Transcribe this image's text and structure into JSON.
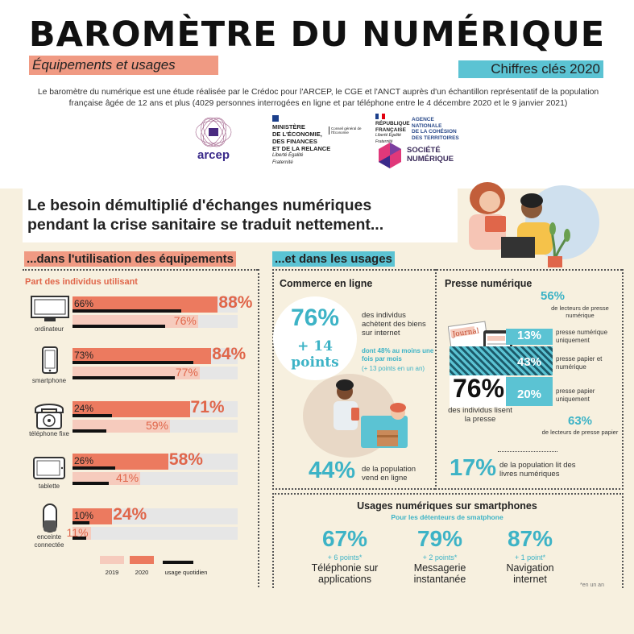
{
  "header": {
    "title": "BAROMÈTRE DU NUMÉRIQUE",
    "subtitle_left": "Équipements et usages",
    "subtitle_right": "Chiffres clés 2020",
    "intro": "Le baromètre du numérique est une étude réalisée par le Crédoc pour l'ARCEP,  le CGE et l'ANCT auprès d'un échantillon représentatif de la population française âgée de 12 ans et plus (4029 personnes interrogées en ligne et par téléphone entre le 4 décembre 2020 et le 9 janvier 2021)"
  },
  "logos": {
    "arcep": "arcep",
    "ministere": [
      "MINISTÈRE",
      "DE L'ÉCONOMIE,",
      "DES FINANCES",
      "ET DE LA RELANCE"
    ],
    "ministere_motto": "Liberté Égalité Fraternité",
    "cge": "Conseil général de l'Économie",
    "republique": [
      "RÉPUBLIQUE",
      "FRANÇAISE"
    ],
    "republique_motto": "Liberté Égalité Fraternité",
    "anct": [
      "AGENCE",
      "NATIONALE",
      "DE LA COHÉSION",
      "DES TERRITOIRES"
    ],
    "societe_numerique": [
      "SOCIÉTÉ",
      "NUMÉRIQUE"
    ]
  },
  "headline": [
    "Le besoin démultiplié d'échanges numériques",
    "pendant la crise sanitaire se traduit nettement..."
  ],
  "equipements": {
    "section_title": "...dans l'utilisation des équipements",
    "chart_title": "Part des individus utilisant",
    "legend": {
      "y2019": "2019",
      "y2020": "2020",
      "daily": "usage quotidien"
    }
  },
  "chart_data": {
    "type": "bar",
    "title": "Part des individus utilisant",
    "categories": [
      "ordinateur",
      "smartphone",
      "téléphone fixe",
      "tablette",
      "enceinte connectée"
    ],
    "series": [
      {
        "name": "2020",
        "values": [
          88,
          84,
          71,
          58,
          24
        ]
      },
      {
        "name": "2019",
        "values": [
          76,
          77,
          59,
          41,
          11
        ]
      },
      {
        "name": "usage quotidien",
        "values": [
          66,
          73,
          24,
          26,
          10
        ]
      }
    ],
    "ylim": [
      0,
      100
    ],
    "colors": {
      "y2019": "#f6cbbd",
      "y2020": "#ec7a5f",
      "daily": "#111111",
      "track": "#e6e6e6"
    }
  },
  "usages": {
    "section_title": "...et dans les usages",
    "commerce": {
      "title": "Commerce en ligne",
      "main_pct": "76%",
      "main_delta": "+ 14 points",
      "main_desc": "des individus achètent des biens sur internet",
      "detail": "dont 48% au moins une fois par mois",
      "detail_delta": "(+ 13 points en un an)",
      "sell_pct": "44%",
      "sell_desc": "de la population vend en ligne"
    },
    "presse": {
      "title": "Presse numérique",
      "journal_label": "Journal",
      "total_pct": "76%",
      "total_desc": "des individus lisent la presse",
      "digital_readers_pct": "56%",
      "digital_readers_desc": "de lecteurs de presse numérique",
      "rows": [
        {
          "pct": "13%",
          "desc": "presse numérique uniquement"
        },
        {
          "pct": "43%",
          "desc": "presse papier et numérique"
        },
        {
          "pct": "20%",
          "desc": "presse papier uniquement"
        }
      ],
      "paper_readers_pct": "63%",
      "paper_readers_desc": "de lecteurs de presse papier",
      "ebook_pct": "17%",
      "ebook_desc": "de la population lit des livres numériques"
    },
    "smartphone": {
      "title": "Usages numériques sur smartphones",
      "subtitle": "Pour les détenteurs de smatphone",
      "items": [
        {
          "pct": "67%",
          "delta": "+ 6 points*",
          "label": "Téléphonie sur applications"
        },
        {
          "pct": "79%",
          "delta": "+ 2 points*",
          "label": "Messagerie instantanée"
        },
        {
          "pct": "87%",
          "delta": "+ 1 point*",
          "label": "Navigation internet"
        }
      ],
      "footnote": "*en un an"
    }
  },
  "colors": {
    "coral": "#ec7a5f",
    "teal": "#3db3c6",
    "cream": "#f7f0df",
    "salmon": "#f09a83"
  }
}
